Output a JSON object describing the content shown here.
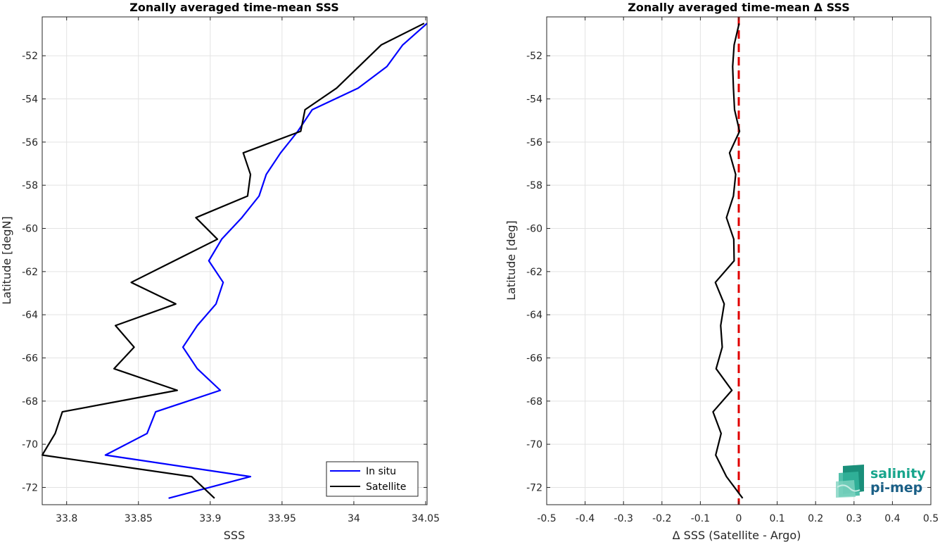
{
  "chart_data": [
    {
      "type": "line",
      "title": "Zonally averaged time-mean SSS",
      "xlabel": "SSS",
      "ylabel": "Latitude [degN]",
      "xlim": [
        33.783,
        34.051
      ],
      "ylim": [
        -72.8,
        -50.2
      ],
      "xticks": [
        33.8,
        33.85,
        33.9,
        33.95,
        34.0,
        34.05
      ],
      "xtick_labels": [
        "33.8",
        "33.85",
        "33.9",
        "33.95",
        "34",
        "34.05"
      ],
      "yticks": [
        -72,
        -70,
        -68,
        -66,
        -64,
        -62,
        -60,
        -58,
        -56,
        -54,
        -52
      ],
      "ytick_labels": [
        "-72",
        "-70",
        "-68",
        "-66",
        "-64",
        "-62",
        "-60",
        "-58",
        "-56",
        "-54",
        "-52"
      ],
      "grid": true,
      "legend_position": "bottom-right",
      "series": [
        {
          "name": "In situ",
          "color": "#0000ff",
          "x": [
            33.871,
            33.928,
            33.827,
            33.856,
            33.862,
            33.907,
            33.891,
            33.881,
            33.891,
            33.904,
            33.909,
            33.899,
            33.908,
            33.922,
            33.934,
            33.939,
            33.949,
            33.961,
            33.971,
            34.003,
            34.023,
            34.034,
            34.051
          ],
          "y": [
            -72.5,
            -71.5,
            -70.5,
            -69.5,
            -68.5,
            -67.5,
            -66.5,
            -65.5,
            -64.5,
            -63.5,
            -62.5,
            -61.5,
            -60.5,
            -59.5,
            -58.5,
            -57.5,
            -56.5,
            -55.5,
            -54.5,
            -53.5,
            -52.5,
            -51.5,
            -50.5
          ]
        },
        {
          "name": "Satellite",
          "color": "#000000",
          "x": [
            33.903,
            33.887,
            33.783,
            33.792,
            33.797,
            33.877,
            33.833,
            33.847,
            33.834,
            33.876,
            33.845,
            33.905,
            33.89,
            33.926,
            33.928,
            33.923,
            33.963,
            33.966,
            33.988,
            34.019,
            34.049
          ],
          "y": [
            -72.5,
            -71.5,
            -70.5,
            -69.5,
            -68.5,
            -67.5,
            -66.5,
            -65.5,
            -64.5,
            -63.5,
            -62.5,
            -60.5,
            -59.5,
            -58.5,
            -57.5,
            -56.5,
            -55.5,
            -54.5,
            -53.5,
            -51.5,
            -50.5
          ]
        }
      ]
    },
    {
      "type": "line",
      "title": "Zonally averaged time-mean Δ SSS",
      "xlabel": "Δ SSS (Satellite - Argo)",
      "ylabel": "Latitude [deg]",
      "xlim": [
        -0.5,
        0.5
      ],
      "ylim": [
        -72.8,
        -50.2
      ],
      "xticks": [
        -0.5,
        -0.4,
        -0.3,
        -0.2,
        -0.1,
        0,
        0.1,
        0.2,
        0.3,
        0.4,
        0.5
      ],
      "xtick_labels": [
        "-0.5",
        "-0.4",
        "-0.3",
        "-0.2",
        "-0.1",
        "0",
        "0.1",
        "0.2",
        "0.3",
        "0.4",
        "0.5"
      ],
      "yticks": [
        -72,
        -70,
        -68,
        -66,
        -64,
        -62,
        -60,
        -58,
        -56,
        -54,
        -52
      ],
      "ytick_labels": [
        "-72",
        "-70",
        "-68",
        "-66",
        "-64",
        "-62",
        "-60",
        "-58",
        "-56",
        "-54",
        "-52"
      ],
      "grid": true,
      "series": [
        {
          "color": "#000000",
          "x": [
            0.01,
            -0.032,
            -0.06,
            -0.046,
            -0.067,
            -0.018,
            -0.059,
            -0.043,
            -0.047,
            -0.038,
            -0.061,
            -0.012,
            -0.013,
            -0.032,
            -0.014,
            -0.008,
            -0.024,
            0.002,
            -0.011,
            -0.014,
            -0.016,
            -0.012,
            0.001
          ],
          "y": [
            -72.5,
            -71.5,
            -70.5,
            -69.5,
            -68.5,
            -67.5,
            -66.5,
            -65.5,
            -64.5,
            -63.5,
            -62.5,
            -61.5,
            -60.5,
            -59.5,
            -58.5,
            -57.5,
            -56.5,
            -55.5,
            -54.5,
            -53.5,
            -52.5,
            -51.5,
            -50.5
          ]
        }
      ],
      "reference_line": {
        "x": 0,
        "color": "#e00000",
        "style": "dashed"
      }
    }
  ],
  "logo": {
    "line1": "salinity",
    "line2": "pi-mep",
    "color": "#17a58c"
  }
}
